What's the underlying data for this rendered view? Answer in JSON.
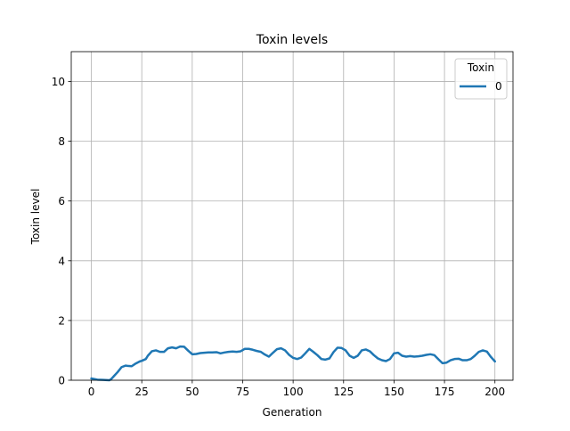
{
  "chart_data": {
    "type": "line",
    "title": "Toxin levels",
    "xlabel": "Generation",
    "ylabel": "Toxin level",
    "xlim": [
      -9.95,
      208.95
    ],
    "ylim": [
      0,
      11
    ],
    "xticks": [
      0,
      25,
      50,
      75,
      100,
      125,
      150,
      175,
      200
    ],
    "yticks": [
      0,
      2,
      4,
      6,
      8,
      10
    ],
    "grid": true,
    "legend": {
      "title": "Toxin",
      "placement": "top-right"
    },
    "series": [
      {
        "name": "0",
        "color": "#1f77b4",
        "x": [
          0,
          3,
          6,
          9,
          10,
          13,
          15,
          17,
          18,
          20,
          22,
          24,
          25,
          27,
          28,
          30,
          32,
          34,
          36,
          38,
          40,
          42,
          44,
          46,
          48,
          50,
          52,
          54,
          56,
          58,
          60,
          62,
          64,
          66,
          68,
          70,
          72,
          74,
          76,
          78,
          80,
          82,
          84,
          86,
          88,
          90,
          92,
          94,
          96,
          98,
          100,
          102,
          104,
          106,
          108,
          110,
          112,
          114,
          116,
          118,
          120,
          122,
          124,
          126,
          128,
          130,
          132,
          134,
          136,
          138,
          140,
          142,
          144,
          146,
          148,
          150,
          152,
          154,
          156,
          158,
          160,
          162,
          164,
          166,
          168,
          170,
          172,
          174,
          176,
          178,
          180,
          182,
          184,
          186,
          188,
          190,
          192,
          194,
          196,
          198,
          200
        ],
        "y": [
          0.06,
          0.02,
          0.01,
          0.0,
          0.05,
          0.27,
          0.44,
          0.49,
          0.48,
          0.47,
          0.56,
          0.63,
          0.65,
          0.71,
          0.82,
          0.97,
          1.0,
          0.95,
          0.95,
          1.07,
          1.1,
          1.07,
          1.13,
          1.12,
          0.99,
          0.87,
          0.88,
          0.91,
          0.92,
          0.93,
          0.93,
          0.94,
          0.9,
          0.93,
          0.95,
          0.96,
          0.95,
          0.97,
          1.05,
          1.05,
          1.02,
          0.98,
          0.95,
          0.86,
          0.79,
          0.92,
          1.04,
          1.07,
          1.0,
          0.85,
          0.75,
          0.71,
          0.76,
          0.9,
          1.05,
          0.95,
          0.84,
          0.71,
          0.69,
          0.73,
          0.94,
          1.09,
          1.08,
          1.0,
          0.82,
          0.75,
          0.82,
          1.0,
          1.03,
          0.97,
          0.84,
          0.73,
          0.67,
          0.64,
          0.71,
          0.9,
          0.92,
          0.82,
          0.79,
          0.81,
          0.79,
          0.8,
          0.82,
          0.85,
          0.87,
          0.84,
          0.7,
          0.57,
          0.59,
          0.67,
          0.71,
          0.72,
          0.67,
          0.67,
          0.71,
          0.82,
          0.95,
          1.0,
          0.96,
          0.78,
          0.63
        ]
      }
    ]
  }
}
